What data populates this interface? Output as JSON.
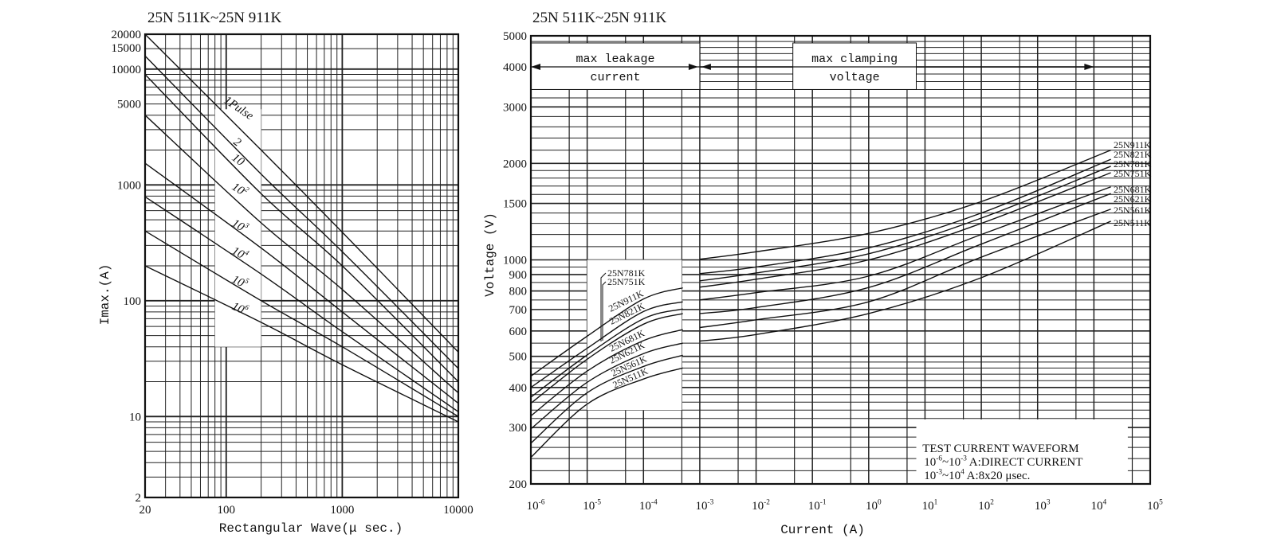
{
  "chart_data": [
    {
      "type": "line",
      "title": "25N 511K~25N 911K",
      "xlabel": "Rectangular Wave(μ sec.)",
      "ylabel": "Imax.(A)",
      "xscale": "log",
      "yscale": "log",
      "xlim": [
        20,
        10000
      ],
      "ylim": [
        2,
        20000
      ],
      "x_tick_labels": [
        "20",
        "100",
        "1000",
        "10000"
      ],
      "x_ticks": [
        20,
        100,
        1000,
        10000
      ],
      "y_tick_labels": [
        "20000",
        "15000",
        "10000",
        "5000",
        "1000",
        "100",
        "10",
        "2"
      ],
      "y_ticks": [
        20000,
        15000,
        10000,
        5000,
        1000,
        100,
        10,
        2
      ],
      "grid": true,
      "x": [
        20,
        200,
        1000,
        10000
      ],
      "series": [
        {
          "name": "1Pulse",
          "values": [
            20000,
            2000,
            390,
            36
          ]
        },
        {
          "name": "2",
          "values": [
            13000,
            1240,
            265,
            26
          ]
        },
        {
          "name": "10",
          "values": [
            9000,
            840,
            200,
            20
          ]
        },
        {
          "name": "10^2",
          "values": [
            4000,
            470,
            125,
            16
          ]
        },
        {
          "name": "10^3",
          "values": [
            1540,
            285,
            80,
            13
          ]
        },
        {
          "name": "10^4",
          "values": [
            790,
            170,
            54,
            11
          ]
        },
        {
          "name": "10^5",
          "values": [
            400,
            100,
            40,
            10
          ]
        },
        {
          "name": "10^6",
          "values": [
            200,
            65,
            28,
            9
          ]
        }
      ]
    },
    {
      "type": "line",
      "title": "25N 511K~25N 911K",
      "xlabel": "Current (A)",
      "ylabel": "Voltage (V)",
      "xscale": "log",
      "yscale": "log",
      "xlim": [
        1e-06,
        100000
      ],
      "ylim": [
        200,
        5000
      ],
      "x_ticks": [
        -6,
        -5,
        -4,
        -3,
        -2,
        -1,
        0,
        1,
        2,
        3,
        4,
        5
      ],
      "x_tick_labels": [
        "10^-6",
        "10^-5",
        "10^-4",
        "10^-3",
        "10^-2",
        "10^-1",
        "10^0",
        "10^1",
        "10^2",
        "10^3",
        "10^4",
        "10^5"
      ],
      "y_ticks": [
        5000,
        4000,
        3000,
        2000,
        1500,
        1000,
        900,
        800,
        700,
        600,
        500,
        400,
        300,
        200
      ],
      "y_tick_labels": [
        "5000",
        "4000",
        "3000",
        "2000",
        "1500",
        "1000",
        "900",
        "800",
        "700",
        "600",
        "500",
        "400",
        "300",
        "200"
      ],
      "grid": true,
      "region_labels": [
        {
          "line1": "max leakage",
          "line2": "current"
        },
        {
          "line1": "max clamping",
          "line2": "voltage"
        }
      ],
      "test_waveform": {
        "title": "TEST CURRENT WAVEFORM",
        "line1": "10^-6~10^-3 A:DIRECT CURRENT",
        "line2": "10^-3~10^4 A:8x20 μsec."
      },
      "leakage_x": [
        1e-06,
        1e-05,
        0.0001,
        0.0005
      ],
      "clamping_x": [
        0.001,
        0.01,
        1,
        100,
        20000
      ],
      "series": [
        {
          "name": "25N911K",
          "leakage": [
            434,
            578,
            755,
            818
          ],
          "clamping": [
            1005,
            1060,
            1210,
            1520,
            2200
          ]
        },
        {
          "name": "25N821K",
          "leakage": [
            400,
            530,
            690,
            740
          ],
          "clamping": [
            906,
            950,
            1090,
            1400,
            2060
          ]
        },
        {
          "name": "25N781K",
          "leakage": [
            373,
            505,
            655,
            703
          ],
          "clamping": [
            860,
            910,
            1045,
            1350,
            1960
          ]
        },
        {
          "name": "25N751K",
          "leakage": [
            357,
            490,
            630,
            680
          ],
          "clamping": [
            822,
            870,
            1000,
            1300,
            1870
          ]
        },
        {
          "name": "25N681K",
          "leakage": [
            326,
            450,
            560,
            606
          ],
          "clamping": [
            750,
            790,
            890,
            1200,
            1690
          ]
        },
        {
          "name": "25N621K",
          "leakage": [
            297,
            415,
            510,
            550
          ],
          "clamping": [
            680,
            710,
            820,
            1120,
            1610
          ]
        },
        {
          "name": "25N561K",
          "leakage": [
            268,
            385,
            465,
            504
          ],
          "clamping": [
            615,
            650,
            740,
            1020,
            1440
          ]
        },
        {
          "name": "25N511K",
          "leakage": [
            242,
            355,
            425,
            460
          ],
          "clamping": [
            558,
            585,
            680,
            880,
            1320
          ]
        }
      ]
    }
  ]
}
